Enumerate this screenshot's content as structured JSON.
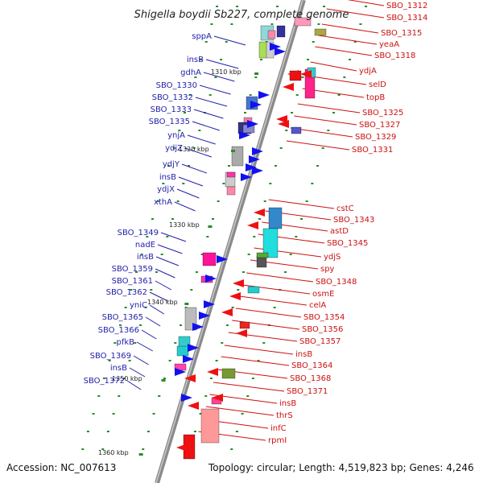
{
  "title": "Shigella boydii Sb227, complete genome",
  "footer": {
    "accession": "Accession: NC_007613",
    "topology": "Topology: circular; Length: 4,519,823 bp; Genes: 4,246"
  },
  "kbp_marks": [
    "1310 kbp",
    "1320 kbp",
    "1330 kbp",
    "1340 kbp",
    "1350 kbp",
    "1360 kbp"
  ],
  "colors": {
    "backbone": "#9a9a9a",
    "forward_genes": "#1111ee",
    "reverse_genes": "#ee1111",
    "left_labels": "#1f1fa8",
    "right_labels": "#cc1111",
    "tick_dots": "#2a8a2a"
  },
  "genes_left": [
    "sppA",
    "insB",
    "gdhA",
    "SBO_1330",
    "SBO_1332",
    "SBO_1333",
    "SBO_1335",
    "ynjA",
    "ydjZ",
    "ydjY",
    "insB",
    "ydjX",
    "xthA",
    "SBO_1349",
    "nadE",
    "insB",
    "SBO_1359",
    "SBO_1361",
    "SBO_1362",
    "yniC",
    "SBO_1365",
    "SBO_1366",
    "pfkB",
    "SBO_1369",
    "insB",
    "SBO_1372"
  ],
  "genes_right": [
    "SBO_1312",
    "SBO_1314",
    "SBO_1315",
    "yeaA",
    "SBO_1318",
    "ydjA",
    "selD",
    "topB",
    "SBO_1325",
    "SBO_1327",
    "SBO_1329",
    "SBO_1331",
    "cstC",
    "SBO_1343",
    "astD",
    "SBO_1345",
    "ydjS",
    "spy",
    "SBO_1348",
    "osmE",
    "celA",
    "SBO_1354",
    "SBO_1356",
    "SBO_1357",
    "insB",
    "SBO_1364",
    "SBO_1368",
    "SBO_1371",
    "insB",
    "thrS",
    "infC",
    "rpmI"
  ]
}
